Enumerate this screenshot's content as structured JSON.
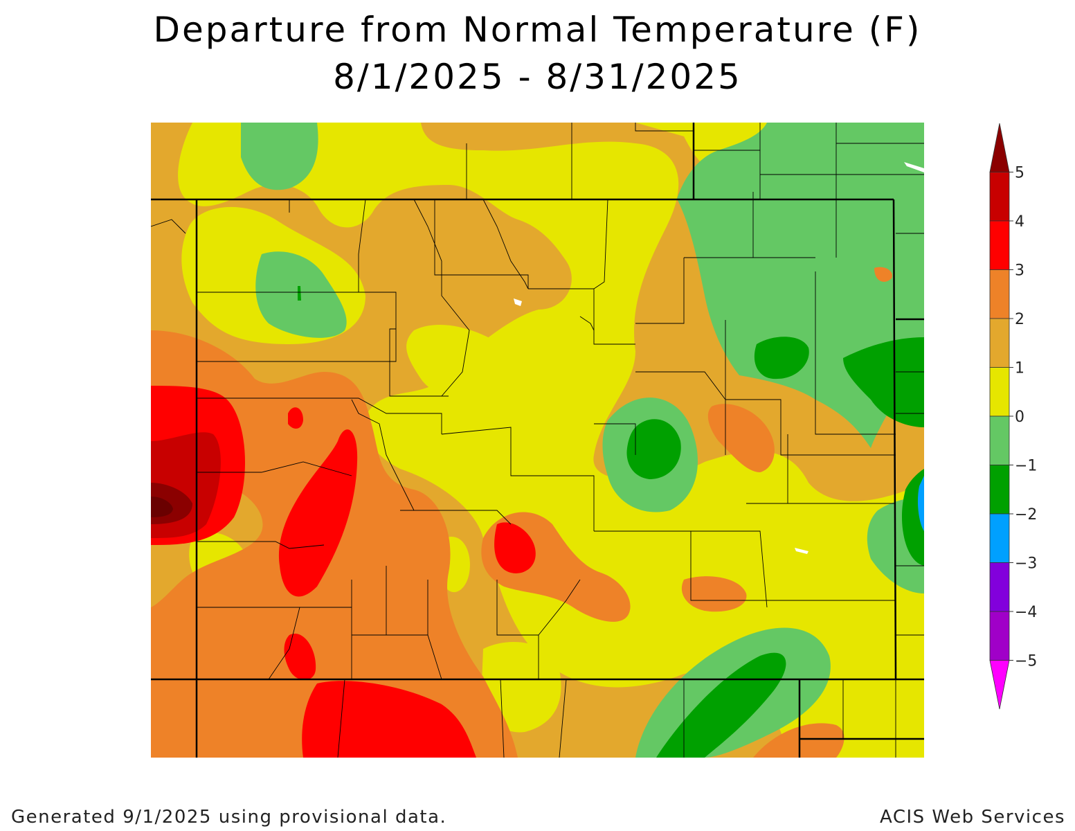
{
  "title": "Departure from Normal Temperature (F)",
  "subtitle": "8/1/2025 - 8/31/2025",
  "footer": {
    "left": "Generated 9/1/2025 using provisional data.",
    "right": "ACIS Web Services"
  },
  "legend": {
    "ticks": [
      "5",
      "4",
      "3",
      "2",
      "1",
      "0",
      "−1",
      "−2",
      "−3",
      "−4",
      "−5"
    ],
    "bins": [
      {
        "range": "> 5",
        "color": "#8b0000"
      },
      {
        "range": "4 to 5",
        "color": "#c80000"
      },
      {
        "range": "3 to 4",
        "color": "#ff0000"
      },
      {
        "range": "2 to 3",
        "color": "#ee8228"
      },
      {
        "range": "1 to 2",
        "color": "#e3a82d"
      },
      {
        "range": "0 to 1",
        "color": "#e6e600"
      },
      {
        "range": "-1 to 0",
        "color": "#64c864"
      },
      {
        "range": "-2 to -1",
        "color": "#00a000"
      },
      {
        "range": "-3 to -2",
        "color": "#00a0ff"
      },
      {
        "range": "-4 to -3",
        "color": "#8200dc"
      },
      {
        "range": "-5 to -4",
        "color": "#a000c8"
      },
      {
        "range": "< -5",
        "color": "#ff00ff"
      }
    ]
  }
}
